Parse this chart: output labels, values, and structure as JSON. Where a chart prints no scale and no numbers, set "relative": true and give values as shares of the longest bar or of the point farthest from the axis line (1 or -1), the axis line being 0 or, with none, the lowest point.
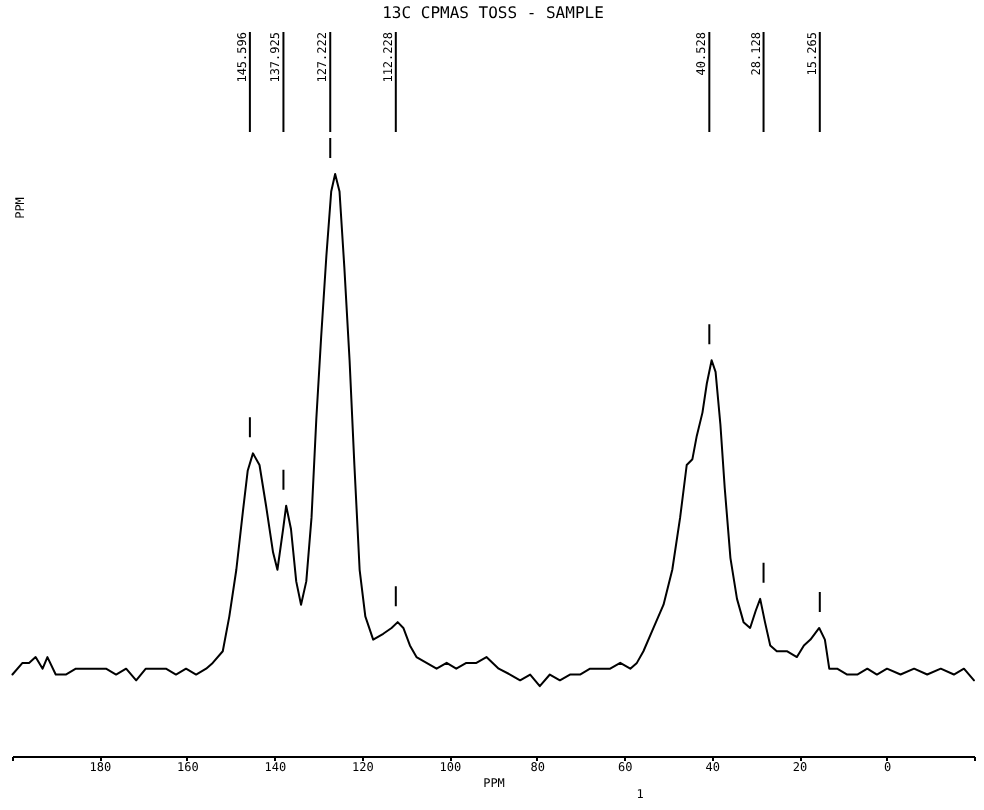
{
  "chart_data": {
    "type": "line",
    "title": "13C CPMAS TOSS - SAMPLE",
    "xlabel": "PPM",
    "relative": true,
    "xlim": [
      200,
      -20
    ],
    "xticks": [
      {
        "value": 200,
        "label": null
      },
      180,
      160,
      140,
      120,
      100,
      80,
      60,
      40,
      20,
      0,
      {
        "value": -20,
        "label": null
      }
    ],
    "x": [
      199.9,
      197.6,
      196.1,
      194.6,
      193.0,
      191.9,
      190.0,
      187.7,
      185.4,
      183.1,
      180.8,
      178.5,
      176.2,
      173.9,
      171.6,
      169.4,
      167.1,
      164.8,
      162.5,
      160.2,
      157.9,
      155.6,
      154.1,
      151.8,
      150.3,
      148.7,
      147.2,
      146.1,
      144.9,
      143.4,
      141.9,
      140.3,
      139.3,
      138.0,
      137.3,
      136.2,
      135.0,
      133.9,
      132.7,
      131.5,
      130.4,
      129.3,
      128.1,
      127.0,
      126.1,
      125.1,
      124.0,
      122.8,
      121.7,
      120.5,
      119.2,
      117.4,
      115.1,
      113.2,
      111.8,
      110.5,
      109.0,
      107.5,
      105.2,
      102.9,
      100.6,
      98.4,
      96.1,
      93.8,
      91.5,
      88.7,
      86.1,
      83.8,
      81.5,
      79.3,
      77.0,
      74.7,
      72.4,
      70.1,
      67.8,
      65.5,
      63.2,
      60.9,
      58.6,
      57.1,
      55.6,
      53.3,
      51.0,
      49.0,
      47.2,
      45.7,
      44.4,
      43.4,
      42.1,
      41.1,
      40.0,
      39.1,
      38.0,
      37.0,
      35.7,
      34.2,
      32.7,
      31.2,
      29.9,
      28.9,
      27.8,
      26.6,
      25.1,
      22.8,
      20.5,
      18.9,
      17.4,
      15.4,
      14.1,
      13.1,
      11.3,
      9.0,
      6.7,
      4.4,
      2.2,
      -0.1,
      -3.2,
      -6.3,
      -9.3,
      -12.4,
      -15.4,
      -17.7,
      -20.0
    ],
    "series": [
      {
        "color": "#000000",
        "values": [
          0.14,
          0.16,
          0.16,
          0.17,
          0.15,
          0.17,
          0.14,
          0.14,
          0.15,
          0.15,
          0.15,
          0.15,
          0.14,
          0.15,
          0.13,
          0.15,
          0.15,
          0.15,
          0.14,
          0.15,
          0.14,
          0.15,
          0.16,
          0.18,
          0.24,
          0.32,
          0.42,
          0.49,
          0.52,
          0.5,
          0.43,
          0.35,
          0.32,
          0.39,
          0.43,
          0.39,
          0.3,
          0.26,
          0.3,
          0.41,
          0.58,
          0.72,
          0.86,
          0.97,
          1.0,
          0.97,
          0.84,
          0.68,
          0.5,
          0.32,
          0.24,
          0.2,
          0.21,
          0.22,
          0.23,
          0.22,
          0.19,
          0.17,
          0.16,
          0.15,
          0.16,
          0.15,
          0.16,
          0.16,
          0.17,
          0.15,
          0.14,
          0.13,
          0.14,
          0.12,
          0.14,
          0.13,
          0.14,
          0.14,
          0.15,
          0.15,
          0.15,
          0.16,
          0.15,
          0.16,
          0.18,
          0.22,
          0.26,
          0.32,
          0.41,
          0.5,
          0.51,
          0.55,
          0.59,
          0.64,
          0.68,
          0.66,
          0.57,
          0.46,
          0.34,
          0.27,
          0.23,
          0.22,
          0.25,
          0.27,
          0.23,
          0.19,
          0.18,
          0.18,
          0.17,
          0.19,
          0.2,
          0.22,
          0.2,
          0.15,
          0.15,
          0.14,
          0.14,
          0.15,
          0.14,
          0.15,
          0.14,
          0.15,
          0.14,
          0.15,
          0.14,
          0.15,
          0.13
        ]
      }
    ],
    "annotations": [
      {
        "text": "145.596",
        "x": 145.596,
        "y": 0.52
      },
      {
        "text": "137.925",
        "x": 137.925,
        "y": 0.43
      },
      {
        "text": "127.222",
        "x": 127.222,
        "y": 1.0
      },
      {
        "text": "112.228",
        "x": 112.228,
        "y": 0.23
      },
      {
        "text": "40.528",
        "x": 40.528,
        "y": 0.68
      },
      {
        "text": "28.128",
        "x": 28.128,
        "y": 0.27
      },
      {
        "text": "15.265",
        "x": 15.265,
        "y": 0.22
      },
      "PPM",
      "1"
    ]
  }
}
